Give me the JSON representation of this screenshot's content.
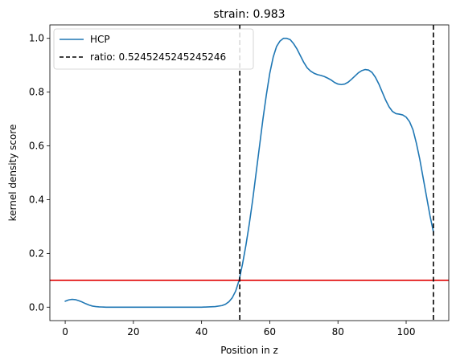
{
  "chart_data": {
    "type": "line",
    "title": "strain: 0.983",
    "xlabel": "Position in z",
    "ylabel": "kernel density score",
    "xlim": [
      -4.5,
      112.5
    ],
    "ylim": [
      -0.05,
      1.05
    ],
    "xticks": [
      0,
      20,
      40,
      60,
      80,
      100
    ],
    "yticks": [
      0.0,
      0.2,
      0.4,
      0.6,
      0.8,
      1.0
    ],
    "xtick_labels": [
      "0",
      "20",
      "40",
      "60",
      "80",
      "100"
    ],
    "ytick_labels": [
      "0.0",
      "0.2",
      "0.4",
      "0.6",
      "0.8",
      "1.0"
    ],
    "grid": false,
    "legend_position": "top-left",
    "series": [
      {
        "name": "HCP",
        "color": "#1f77b4",
        "x": [
          0,
          1,
          2,
          3,
          4,
          5,
          6,
          7,
          8,
          9,
          10,
          12,
          15,
          20,
          25,
          30,
          35,
          40,
          44,
          46,
          47,
          48,
          49,
          50,
          51,
          52,
          53,
          54,
          55,
          56,
          57,
          58,
          59,
          60,
          61,
          62,
          63,
          64,
          65,
          66,
          67,
          68,
          69,
          70,
          71,
          72,
          73,
          74,
          75,
          76,
          77,
          78,
          79,
          80,
          81,
          82,
          83,
          84,
          85,
          86,
          87,
          88,
          89,
          90,
          91,
          92,
          93,
          94,
          95,
          96,
          97,
          98,
          99,
          100,
          101,
          102,
          103,
          104,
          105,
          106,
          107,
          108
        ],
        "y": [
          0.022,
          0.027,
          0.029,
          0.028,
          0.024,
          0.019,
          0.013,
          0.008,
          0.004,
          0.002,
          0.001,
          0.0,
          0.0,
          0.0,
          0.0,
          0.0,
          0.0,
          0.0,
          0.002,
          0.006,
          0.011,
          0.02,
          0.035,
          0.06,
          0.1,
          0.16,
          0.23,
          0.31,
          0.4,
          0.5,
          0.6,
          0.7,
          0.79,
          0.87,
          0.93,
          0.97,
          0.99,
          1.0,
          1.0,
          0.995,
          0.98,
          0.96,
          0.935,
          0.91,
          0.89,
          0.878,
          0.87,
          0.865,
          0.862,
          0.858,
          0.852,
          0.845,
          0.836,
          0.83,
          0.828,
          0.83,
          0.837,
          0.848,
          0.86,
          0.872,
          0.88,
          0.884,
          0.882,
          0.873,
          0.855,
          0.83,
          0.8,
          0.77,
          0.745,
          0.728,
          0.72,
          0.718,
          0.715,
          0.707,
          0.69,
          0.66,
          0.61,
          0.55,
          0.48,
          0.41,
          0.34,
          0.28
        ]
      }
    ],
    "vlines": [
      {
        "name": "ratio: 0.5245245245245246",
        "x": 51.2,
        "color": "#000000",
        "style": "dashed"
      },
      {
        "name": "",
        "x": 108.0,
        "color": "#000000",
        "style": "dashed"
      }
    ],
    "hlines": [
      {
        "y": 0.1,
        "color": "#e00000",
        "style": "solid"
      }
    ],
    "legend": [
      {
        "label": "HCP",
        "style": "solid",
        "color": "#1f77b4"
      },
      {
        "label": "ratio: 0.5245245245245246",
        "style": "dashed",
        "color": "#000000"
      }
    ]
  }
}
